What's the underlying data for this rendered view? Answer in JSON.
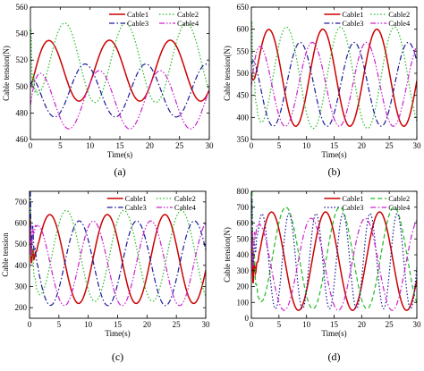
{
  "chart_data": [
    {
      "type": "line",
      "panel_label": "(a)",
      "xlabel": "Time(s)",
      "ylabel": "Cable tension(N)",
      "xlim": [
        0,
        30
      ],
      "ylim": [
        460,
        560
      ],
      "xticks": [
        0,
        5,
        10,
        15,
        20,
        25,
        30
      ],
      "yticks": [
        460,
        480,
        500,
        520,
        540,
        560
      ],
      "legend_position": "top",
      "series": [
        {
          "name": "Cable1",
          "color": "#cc0000",
          "dash": "solid",
          "start": 500,
          "mean": 512,
          "amp": 23,
          "period": 10.2,
          "phase": 0.5,
          "transient": 0
        },
        {
          "name": "Cable2",
          "color": "#22bb22",
          "dash": "dot",
          "start": 527,
          "mean": 518,
          "amp": 30,
          "period": 10.2,
          "phase": 3.2,
          "transient": 30
        },
        {
          "name": "Cable3",
          "color": "#1a1a99",
          "dash": "dashdot",
          "start": 500,
          "mean": 497,
          "amp": 20,
          "period": 10.2,
          "phase": 6.6,
          "transient": 0
        },
        {
          "name": "Cable4",
          "color": "#cc22cc",
          "dash": "dashdotdot",
          "start": 486,
          "mean": 490,
          "amp": 22,
          "period": 10.2,
          "phase": 9.0,
          "transient": 0
        }
      ]
    },
    {
      "type": "line",
      "panel_label": "(b)",
      "xlabel": "Time(s)",
      "ylabel": "Cable tension(N)",
      "xlim": [
        0,
        30
      ],
      "ylim": [
        350,
        650
      ],
      "xticks": [
        0,
        5,
        10,
        15,
        20,
        25,
        30
      ],
      "yticks": [
        350,
        400,
        450,
        500,
        550,
        600,
        650
      ],
      "legend_position": "top",
      "series": [
        {
          "name": "Cable1",
          "color": "#cc0000",
          "dash": "solid",
          "start": 500,
          "mean": 490,
          "amp": 110,
          "period": 9.8,
          "phase": 0.7,
          "transient": 0
        },
        {
          "name": "Cable2",
          "color": "#22bb22",
          "dash": "dot",
          "start": 600,
          "mean": 490,
          "amp": 115,
          "period": 9.8,
          "phase": 3.9,
          "transient": 60
        },
        {
          "name": "Cable3",
          "color": "#1a1a99",
          "dash": "dashdot",
          "start": 520,
          "mean": 475,
          "amp": 95,
          "period": 9.8,
          "phase": 6.4,
          "transient": 0
        },
        {
          "name": "Cable4",
          "color": "#cc22cc",
          "dash": "dashdotdot",
          "start": 470,
          "mean": 475,
          "amp": 95,
          "period": 9.8,
          "phase": 8.6,
          "transient": 0
        }
      ]
    },
    {
      "type": "line",
      "panel_label": "(c)",
      "xlabel": "Time(s)",
      "ylabel": "Cable tension",
      "xlim": [
        0,
        30
      ],
      "ylim": [
        150,
        750
      ],
      "xticks": [
        0,
        5,
        10,
        15,
        20,
        25,
        30
      ],
      "yticks": [
        200,
        300,
        400,
        500,
        600,
        700
      ],
      "legend_position": "top",
      "series": [
        {
          "name": "Cable1",
          "color": "#cc0000",
          "dash": "solid",
          "start": 560,
          "mean": 430,
          "amp": 210,
          "period": 9.8,
          "phase": 1.0,
          "transient": 150
        },
        {
          "name": "Cable2",
          "color": "#22bb22",
          "dash": "dot",
          "start": 700,
          "mean": 445,
          "amp": 215,
          "period": 9.8,
          "phase": 3.8,
          "transient": 200
        },
        {
          "name": "Cable3",
          "color": "#1a1a99",
          "dash": "dashdot",
          "start": 620,
          "mean": 410,
          "amp": 200,
          "period": 9.8,
          "phase": 6.0,
          "transient": 250
        },
        {
          "name": "Cable4",
          "color": "#cc22cc",
          "dash": "dashdotdot",
          "start": 450,
          "mean": 410,
          "amp": 200,
          "period": 9.8,
          "phase": 8.4,
          "transient": 150
        }
      ]
    },
    {
      "type": "line",
      "panel_label": "(d)",
      "xlabel": "Time(s)",
      "ylabel": "Cable tension(N)",
      "xlim": [
        0,
        30
      ],
      "ylim": [
        0,
        800
      ],
      "xticks": [
        0,
        5,
        10,
        15,
        20,
        25,
        30
      ],
      "yticks": [
        0,
        100,
        200,
        300,
        400,
        500,
        600,
        700,
        800
      ],
      "legend_position": "top",
      "series": [
        {
          "name": "Cable1",
          "color": "#cc0000",
          "dash": "solid",
          "start": 400,
          "mean": 360,
          "amp": 310,
          "period": 9.8,
          "phase": 1.2,
          "transient": 250
        },
        {
          "name": "Cable2",
          "color": "#22bb22",
          "dash": "dash",
          "start": 700,
          "mean": 380,
          "amp": 320,
          "period": 9.8,
          "phase": 3.8,
          "transient": 300
        },
        {
          "name": "Cable3",
          "color": "#1a1a99",
          "dash": "dot",
          "start": 600,
          "mean": 360,
          "amp": 300,
          "period": 4.9,
          "phase": 5.6,
          "transient": 300
        },
        {
          "name": "Cable4",
          "color": "#cc22cc",
          "dash": "dashdot",
          "start": 300,
          "mean": 340,
          "amp": 290,
          "period": 9.8,
          "phase": 8.4,
          "transient": 250
        }
      ]
    }
  ]
}
